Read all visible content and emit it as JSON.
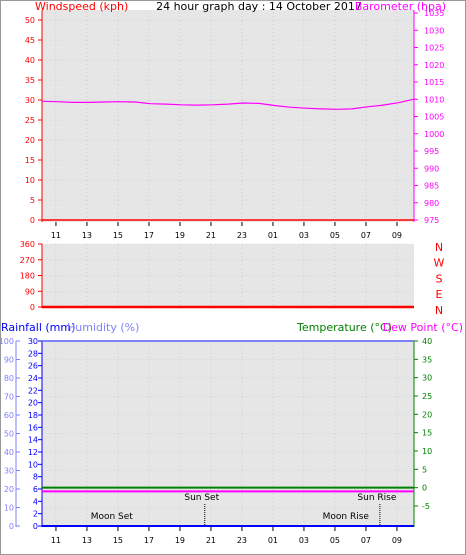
{
  "colors": {
    "wind": "#ff0000",
    "baro": "#ff00ff",
    "rain": "#0000ff",
    "humidity": "#8080ff",
    "temperature": "#008000",
    "dew": "#ff00ff",
    "grid": "#bbbbbb",
    "plot_bg": "#e6e6e6"
  },
  "chart_data": [
    {
      "type": "line",
      "title": "24 hour graph day : 14 October 2017",
      "left_axis": {
        "label": "Windspeed (kph)",
        "ticks": [
          "0",
          "5",
          "10",
          "15",
          "20",
          "25",
          "30",
          "35",
          "40",
          "45",
          "50"
        ],
        "range": [
          0,
          50
        ]
      },
      "right_axis": {
        "label": "Barometer (hpa)",
        "ticks": [
          "975",
          "980",
          "985",
          "990",
          "995",
          "1000",
          "1005",
          "1010",
          "1015",
          "1020",
          "1025",
          "1030",
          "1035"
        ],
        "range": [
          975,
          1035
        ]
      },
      "x_ticks": [
        "11",
        "13",
        "15",
        "17",
        "19",
        "21",
        "23",
        "01",
        "03",
        "05",
        "07",
        "09"
      ],
      "series": [
        {
          "axis": "right",
          "x": [
            0,
            1,
            2,
            3,
            4,
            5,
            6,
            7,
            8,
            9,
            10,
            11,
            12,
            13,
            14,
            15,
            16,
            17,
            18,
            19,
            20,
            21,
            22,
            23,
            24
          ],
          "y": [
            1009.4,
            1009.3,
            1009.1,
            1009.1,
            1009.2,
            1009.3,
            1009.2,
            1008.7,
            1008.6,
            1008.4,
            1008.3,
            1008.4,
            1008.6,
            1008.9,
            1008.8,
            1008.2,
            1007.7,
            1007.4,
            1007.2,
            1007.1,
            1007.2,
            1007.8,
            1008.3,
            1009.0,
            1010.0
          ]
        },
        {
          "axis": "left",
          "x": [
            0,
            24
          ],
          "y": [
            0,
            0
          ]
        }
      ]
    },
    {
      "type": "line",
      "left_axis": {
        "ticks": [
          "0",
          "90",
          "180",
          "270",
          "360"
        ],
        "range": [
          0,
          360
        ]
      },
      "right_labels": [
        "N",
        "W",
        "S",
        "E",
        "N"
      ],
      "series": [
        {
          "axis": "left",
          "x": [
            0,
            24
          ],
          "y": [
            0,
            0
          ]
        }
      ]
    },
    {
      "type": "line",
      "rain_axis": {
        "label": "Rainfall (mm)",
        "ticks": [
          "0",
          "2",
          "4",
          "6",
          "8",
          "10",
          "12",
          "14",
          "16",
          "18",
          "20",
          "22",
          "24",
          "26",
          "28",
          "30"
        ],
        "range": [
          0,
          30
        ]
      },
      "humidity_axis": {
        "label": "Humidity (%)",
        "ticks": [
          "0",
          "10",
          "20",
          "30",
          "40",
          "50",
          "60",
          "70",
          "80",
          "90",
          "100"
        ],
        "range": [
          0,
          100
        ]
      },
      "temp_axis": {
        "label": "Temperature (°C)",
        "ticks": [
          "-5",
          "0",
          "5",
          "10",
          "15",
          "20",
          "25",
          "30",
          "35",
          "40"
        ],
        "range": [
          -5,
          40
        ]
      },
      "dew_label": "Dew Point (°C)",
      "x_ticks": [
        "11",
        "13",
        "15",
        "17",
        "19",
        "21",
        "23",
        "01",
        "03",
        "05",
        "07",
        "09"
      ],
      "series": [
        {
          "axis": "humidity",
          "x": [
            0,
            24
          ],
          "y": [
            100,
            100
          ]
        },
        {
          "axis": "temp",
          "x": [
            0,
            24
          ],
          "y": [
            0,
            0
          ]
        },
        {
          "axis": "temp",
          "x": [
            0,
            24
          ],
          "y": [
            -1,
            -1
          ]
        },
        {
          "axis": "rain",
          "x": [
            0,
            24
          ],
          "y": [
            0,
            0
          ]
        }
      ],
      "annotations": [
        {
          "label": "Moon Set",
          "x": 4.5,
          "row": "low"
        },
        {
          "label": "Sun Set",
          "x": 10.5,
          "row": "high"
        },
        {
          "label": "Moon Rise",
          "x": 19.6,
          "row": "low"
        },
        {
          "label": "Sun Rise",
          "x": 21.8,
          "row": "high"
        }
      ]
    }
  ]
}
